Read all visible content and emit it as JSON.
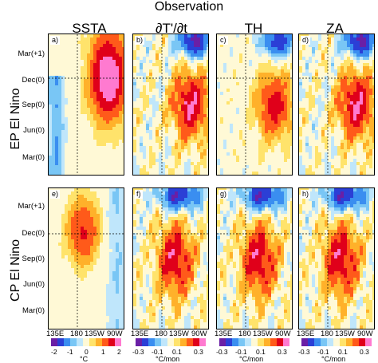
{
  "figure": {
    "title": "Observation",
    "columns": [
      "SSTA",
      "∂T'/∂t",
      "TH",
      "ZA"
    ],
    "rows": [
      "EP El Nino",
      "CP El Nino"
    ],
    "panel_labels": [
      "a)",
      "b)",
      "c)",
      "d)",
      "e)",
      "f)",
      "g)",
      "h)"
    ],
    "y_ticks": [
      "Mar(+1)",
      "Dec(0)",
      "Sep(0)",
      "Jun(0)",
      "Mar(0)"
    ],
    "x_ticks": [
      "135E",
      "180",
      "135W",
      "90W"
    ],
    "colorbars": [
      {
        "ticks": [
          "-2",
          "-1",
          "0",
          "1",
          "2"
        ],
        "unit": "°C"
      },
      {
        "ticks": [
          "-0.3",
          "-0.1",
          "0.1",
          "0.3"
        ],
        "unit": "°C/mon"
      },
      {
        "ticks": [
          "-0.3",
          "-0.1",
          "0.1",
          "0.3"
        ],
        "unit": "°C/mon"
      },
      {
        "ticks": [
          "-0.3",
          "-0.1",
          "0.1",
          "0.3"
        ],
        "unit": "°C/mon"
      }
    ],
    "palette": [
      "#6a1fa6",
      "#2b3fd6",
      "#3a8ef0",
      "#79c6f5",
      "#bfe6fb",
      "#fff9d6",
      "#ffe36b",
      "#ffb12a",
      "#ff5a1a",
      "#e0001a",
      "#ff7ad0"
    ]
  }
}
